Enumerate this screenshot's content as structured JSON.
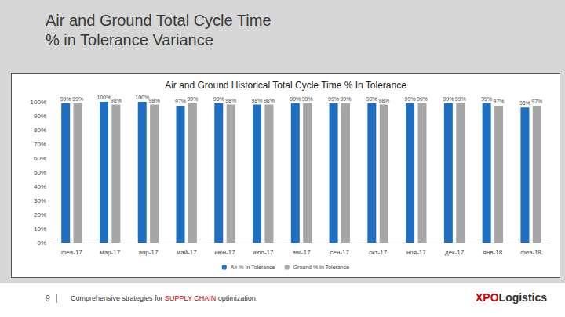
{
  "slide": {
    "title": [
      "Air and Ground Total Cycle Time",
      "% in Tolerance Variance"
    ],
    "page_number": "9",
    "footer": [
      "Comprehensive strategies for ",
      "SUPPLY CHAIN",
      " optimization."
    ],
    "logo": [
      "XPO",
      "Logistics"
    ]
  },
  "chart_data": {
    "type": "bar",
    "title": "Air and Ground Historical Total Cycle Time % In Tolerance",
    "categories": [
      "фев-17",
      "мар-17",
      "апр-17",
      "май-17",
      "июн-17",
      "июл-17",
      "авг-17",
      "сен-17",
      "окт-17",
      "ноя-17",
      "дек-17",
      "янв-18",
      "фев-18"
    ],
    "series": [
      {
        "name": "Air % In Tolerance",
        "color": "#1f6fc1",
        "values": [
          99,
          100,
          100,
          97,
          99,
          98,
          99,
          99,
          99,
          99,
          99,
          99,
          96
        ],
        "value_labels": [
          "99%",
          "100%",
          "100%",
          "97%",
          "99%",
          "98%",
          "99%",
          "99%",
          "99%",
          "99%",
          "99%",
          "99%",
          "96%"
        ]
      },
      {
        "name": "Ground % In Tolerance",
        "color": "#a6a6a6",
        "values": [
          99,
          98,
          98,
          99,
          98,
          98,
          99,
          99,
          98,
          99,
          99,
          97,
          97
        ],
        "value_labels": [
          "99%",
          "98%",
          "98%",
          "99%",
          "98%",
          "98%",
          "99%",
          "99%",
          "98%",
          "99%",
          "99%",
          "97%",
          "97%"
        ]
      }
    ],
    "ylim": [
      0,
      100
    ],
    "yticks": [
      {
        "value": 0,
        "label": "0%"
      },
      {
        "value": 10,
        "label": "10%"
      },
      {
        "value": 20,
        "label": "20%"
      },
      {
        "value": 30,
        "label": "30%"
      },
      {
        "value": 40,
        "label": "40%"
      },
      {
        "value": 50,
        "label": "50%"
      },
      {
        "value": 60,
        "label": "60%"
      },
      {
        "value": 70,
        "label": "70%"
      },
      {
        "value": 80,
        "label": "80%"
      },
      {
        "value": 90,
        "label": "90%"
      },
      {
        "value": 100,
        "label": "100%"
      }
    ],
    "grid": false,
    "legend": "bottom",
    "data_labels": true
  }
}
